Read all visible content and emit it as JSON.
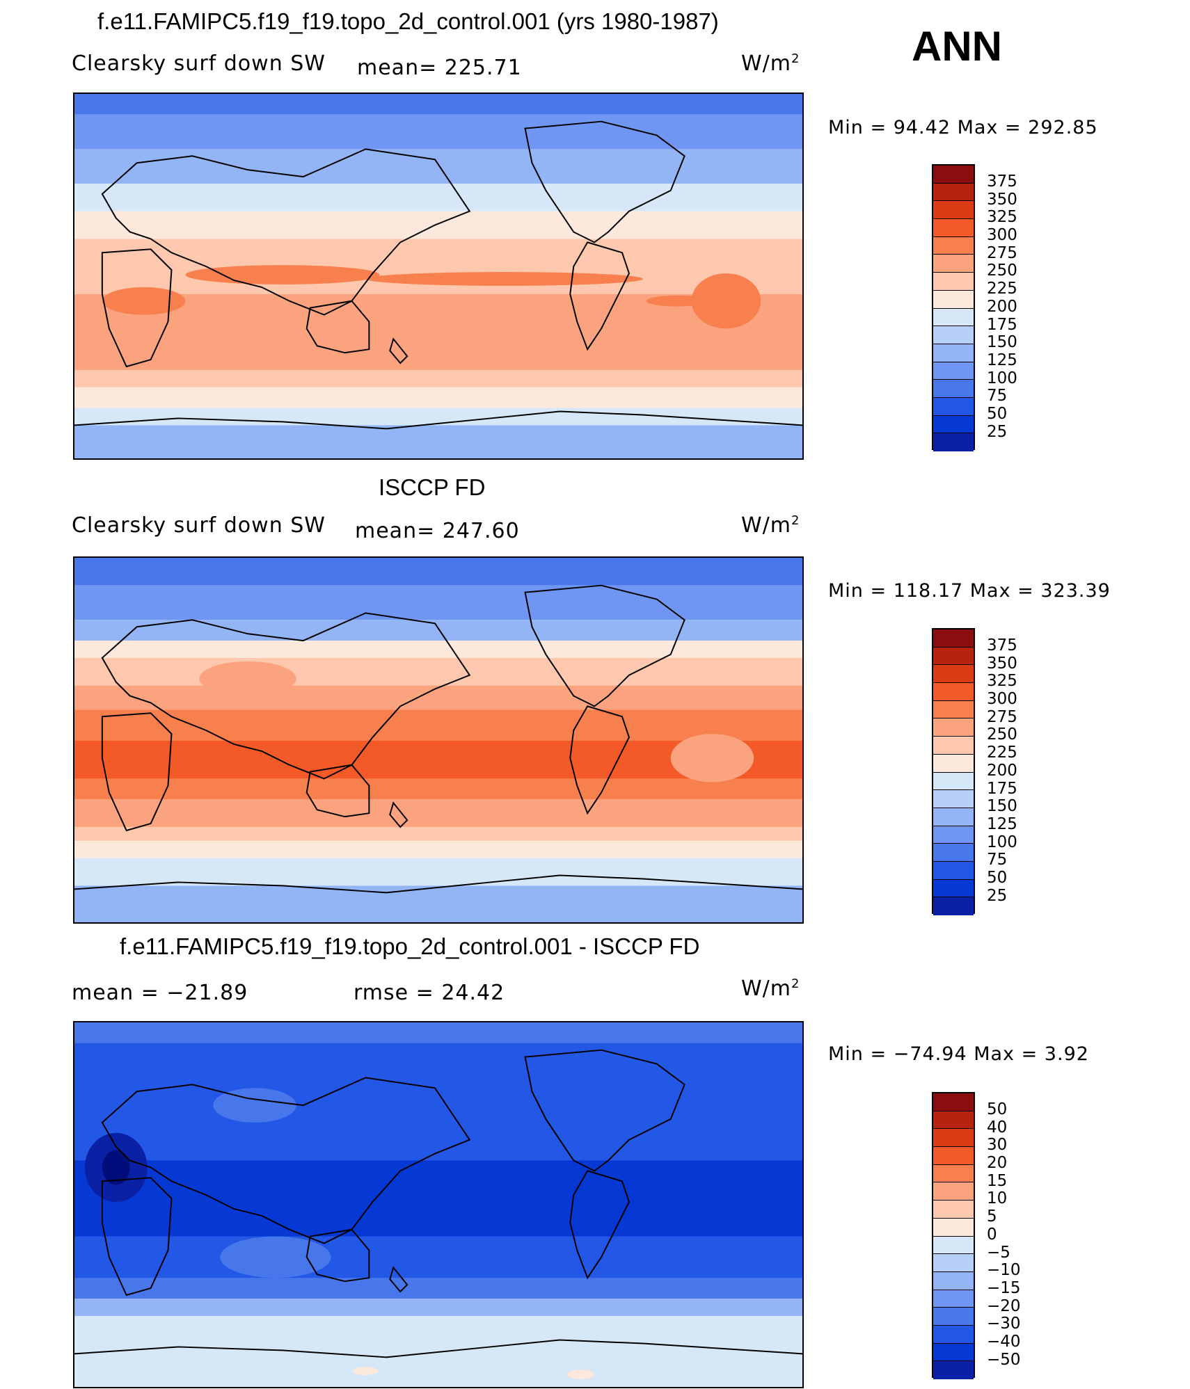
{
  "header": {
    "title": "f.e11.FAMIPC5.f19_f19.topo_2d_control.001 (yrs 1980-1987)",
    "season": "ANN"
  },
  "panels": [
    {
      "id": "model",
      "title": "",
      "variable": "Clearsky surf down SW",
      "stat": "mean= 225.71",
      "units": "W/m",
      "units_sup": "2",
      "minmax": "Min =   94.42  Max  =  292.85",
      "levels": [
        "375",
        "350",
        "325",
        "300",
        "275",
        "250",
        "225",
        "200",
        "175",
        "150",
        "125",
        "100",
        "75",
        "50",
        "25"
      ]
    },
    {
      "id": "obs",
      "title": "ISCCP FD",
      "variable": "Clearsky surf down SW",
      "stat": "mean= 247.60",
      "units": "W/m",
      "units_sup": "2",
      "minmax": "Min  =  118.17  Max  =  323.39",
      "levels": [
        "375",
        "350",
        "325",
        "300",
        "275",
        "250",
        "225",
        "200",
        "175",
        "150",
        "125",
        "100",
        "75",
        "50",
        "25"
      ]
    },
    {
      "id": "diff",
      "title": "f.e11.FAMIPC5.f19_f19.topo_2d_control.001 - ISCCP FD",
      "variable": "mean  =  −21.89",
      "stat": "rmse  =    24.42",
      "units": "W/m",
      "units_sup": "2",
      "minmax": "Min  =  −74.94  Max  =      3.92",
      "levels": [
        "50",
        "40",
        "30",
        "20",
        "15",
        "10",
        "5",
        "0",
        "−5",
        "−10",
        "−15",
        "−20",
        "−30",
        "−40",
        "−50"
      ]
    }
  ],
  "colors": {
    "palette": [
      "#8a0e0e",
      "#b7230c",
      "#dc3c14",
      "#f45a28",
      "#f87f4e",
      "#fba37f",
      "#fdc8ad",
      "#fde9dc",
      "#d6e8f8",
      "#b7d0f8",
      "#93b5f6",
      "#6e96f2",
      "#4877ec",
      "#2357e6",
      "#0638d4",
      "#0a21a6",
      "#000d7a"
    ]
  }
}
